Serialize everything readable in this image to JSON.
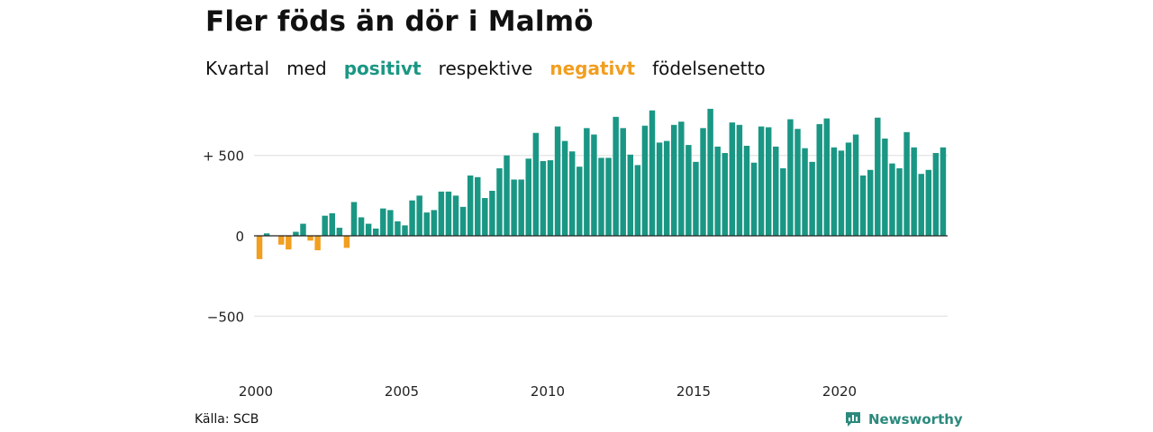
{
  "title": "Fler föds än dör i Malmö",
  "subtitle": {
    "w1": "Kvartal",
    "w2": "med",
    "positive": "positivt",
    "w3": "respektive",
    "negative": "negativt",
    "w4": "födelsenetto"
  },
  "source": "Källa: SCB",
  "brand": "Newsworthy",
  "colors": {
    "positive": "#1a9784",
    "negative": "#f29e1f",
    "grid": "#dddddd",
    "baseline": "#222222"
  },
  "chart_data": {
    "type": "bar",
    "xlabel": "",
    "ylabel": "",
    "ylim": [
      -800,
      900
    ],
    "y_ticks": [
      {
        "value": 500,
        "label": "+ 500"
      },
      {
        "value": 0,
        "label": "0"
      },
      {
        "value": -500,
        "label": "−500"
      }
    ],
    "x_ticks": [
      {
        "value": 2000,
        "label": "2000"
      },
      {
        "value": 2005,
        "label": "2005"
      },
      {
        "value": 2010,
        "label": "2010"
      },
      {
        "value": 2015,
        "label": "2015"
      },
      {
        "value": 2020,
        "label": "2020"
      }
    ],
    "x_start": 2000,
    "x_end": 2024,
    "grid": true,
    "legend": "none",
    "series": [
      {
        "values": [
          -145,
          15,
          0,
          -55,
          -85,
          25,
          75,
          -30,
          -90,
          125,
          140,
          50,
          -75,
          210,
          115,
          75,
          45,
          170,
          160,
          90,
          65,
          220,
          250,
          145,
          160,
          275,
          275,
          250,
          180,
          375,
          365,
          235,
          280,
          420,
          500,
          350,
          350,
          480,
          640,
          465,
          470,
          680,
          590,
          525,
          430,
          670,
          630,
          485,
          485,
          740,
          670,
          505,
          440,
          685,
          780,
          580,
          590,
          690,
          710,
          565,
          460,
          670,
          790,
          555,
          515,
          705,
          690,
          560,
          455,
          680,
          675,
          555,
          420,
          725,
          665,
          545,
          460,
          695,
          730,
          550,
          530,
          580,
          630,
          375,
          410,
          735,
          605,
          450,
          420,
          645,
          550,
          385,
          410,
          515,
          550
        ]
      }
    ]
  }
}
